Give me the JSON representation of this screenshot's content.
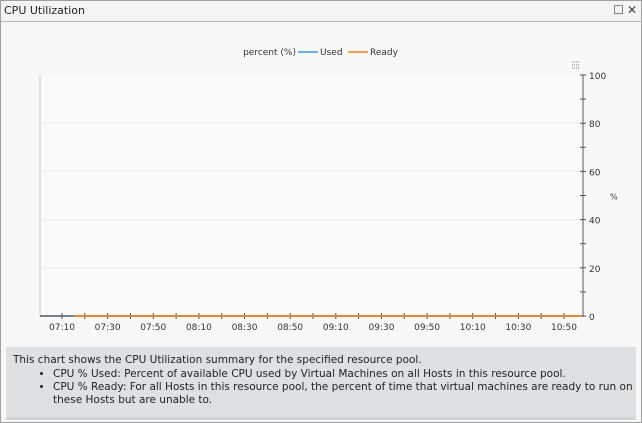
{
  "window": {
    "title": "CPU Utilization",
    "maximize_icon": "square-icon",
    "close_icon": "x-icon"
  },
  "chart_data": {
    "type": "line",
    "legend_title": "percent (%)",
    "legend_position": "top-center",
    "ylabel": "%",
    "ylim": [
      0,
      100
    ],
    "y_ticks": [
      "0",
      "20",
      "40",
      "60",
      "80",
      "100"
    ],
    "x_ticks": [
      "07:10",
      "07:30",
      "07:50",
      "08:10",
      "08:30",
      "08:50",
      "09:10",
      "09:30",
      "09:50",
      "10:10",
      "10:30",
      "10:50"
    ],
    "grid": true,
    "series": [
      {
        "name": "Used",
        "color": "#3399ff",
        "x": [
          "07:00",
          "11:05"
        ],
        "y": [
          0,
          0
        ]
      },
      {
        "name": "Ready",
        "color": "#ff8000",
        "x": [
          "07:15",
          "11:05"
        ],
        "y": [
          0,
          0
        ]
      }
    ]
  },
  "description": {
    "summary": "This chart shows the CPU Utilization summary for the specified resource pool.",
    "items": [
      "CPU % Used: Percent of available CPU used by Virtual Machines on all Hosts in this resource pool.",
      "CPU % Ready: For all Hosts in this resource pool, the percent of time that virtual machines are ready to run on these Hosts but are unable to."
    ]
  }
}
